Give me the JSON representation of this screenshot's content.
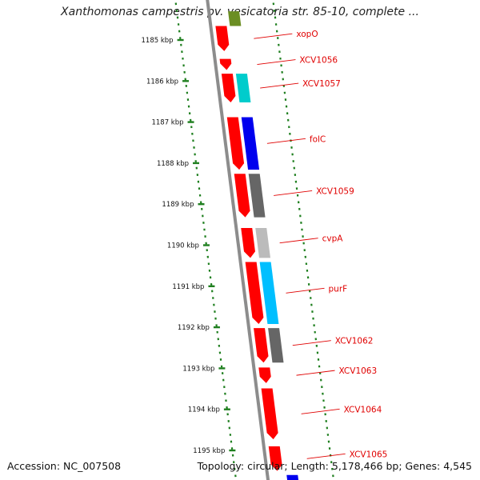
{
  "title": "Xanthomonas campestris pv. vesicatoria str. 85-10, complete ...",
  "footer": {
    "accession": "Accession: NC_007508",
    "topology": "Topology: circular; Length: 5,178,466 bp; Genes: 4,545"
  },
  "ticks": [
    {
      "kbp": 1185,
      "label": "1185 kbp"
    },
    {
      "kbp": 1186,
      "label": "1186 kbp"
    },
    {
      "kbp": 1187,
      "label": "1187 kbp"
    },
    {
      "kbp": 1188,
      "label": "1188 kbp"
    },
    {
      "kbp": 1189,
      "label": "1189 kbp"
    },
    {
      "kbp": 1190,
      "label": "1190 kbp"
    },
    {
      "kbp": 1191,
      "label": "1191 kbp"
    },
    {
      "kbp": 1192,
      "label": "1192 kbp"
    },
    {
      "kbp": 1193,
      "label": "1193 kbp"
    },
    {
      "kbp": 1194,
      "label": "1194 kbp"
    },
    {
      "kbp": 1195,
      "label": "1195 kbp"
    }
  ],
  "colors": {
    "cds": "#ff0000",
    "green": "#1f7f1f",
    "backbone": "#8c8c8c",
    "label": "#e00000"
  },
  "genes": [
    {
      "name": "xopO",
      "start": 1184.66,
      "end": 1185.27
    },
    {
      "name": "XCV1056",
      "start": 1185.46,
      "end": 1185.73
    },
    {
      "name": "XCV1057",
      "start": 1185.82,
      "end": 1186.52
    },
    {
      "name": "folC",
      "start": 1186.88,
      "end": 1188.16
    },
    {
      "name": "XCV1059",
      "start": 1188.26,
      "end": 1189.32
    },
    {
      "name": "cvpA",
      "start": 1189.58,
      "end": 1190.31
    },
    {
      "name": "purF",
      "start": 1190.41,
      "end": 1191.92
    },
    {
      "name": "XCV1062",
      "start": 1192.02,
      "end": 1192.86
    },
    {
      "name": "XCV1063",
      "start": 1192.98,
      "end": 1193.36
    },
    {
      "name": "XCV1064",
      "start": 1193.49,
      "end": 1194.73
    },
    {
      "name": "XCV1065",
      "start": 1194.9,
      "end": 1195.5
    }
  ],
  "outer_features": [
    {
      "start": 1184.3,
      "end": 1184.66,
      "color": "#6b8e23"
    },
    {
      "start": 1185.82,
      "end": 1186.52,
      "color": "#00cccc"
    },
    {
      "start": 1186.88,
      "end": 1188.16,
      "color": "#0000ee"
    },
    {
      "start": 1188.26,
      "end": 1189.32,
      "color": "#666666"
    },
    {
      "start": 1189.58,
      "end": 1190.31,
      "color": "#bbbbbb"
    },
    {
      "start": 1190.41,
      "end": 1191.92,
      "color": "#00bfff"
    },
    {
      "start": 1192.02,
      "end": 1192.86,
      "color": "#666666"
    },
    {
      "start": 1195.6,
      "end": 1195.9,
      "color": "#0000ee"
    }
  ]
}
